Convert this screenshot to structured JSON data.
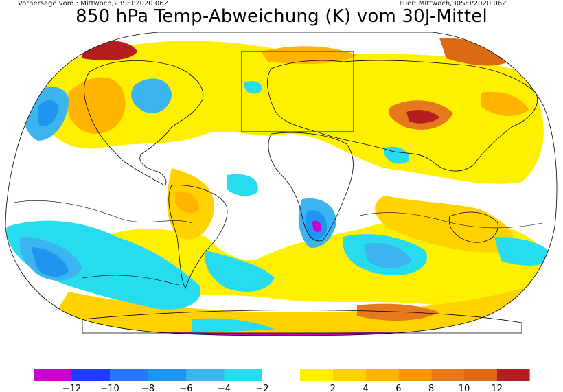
{
  "header": {
    "forecast_from": "Vorhersage vom : Mittwoch,23SEP2020 06Z",
    "valid_for": "Fuer: Mittwoch,30SEP2020 06Z",
    "title": "850 hPa Temp-Abweichung (K) vom 30J-Mittel"
  },
  "legend": {
    "negative_bins": [
      {
        "color": "#c800c8",
        "label": "−12"
      },
      {
        "color": "#1e3cff",
        "label": "−10"
      },
      {
        "color": "#2878ff",
        "label": "−8"
      },
      {
        "color": "#1e96f0",
        "label": "−6"
      },
      {
        "color": "#3cb4f0",
        "label": "−4"
      },
      {
        "color": "#28dcf0",
        "label": "−2"
      }
    ],
    "positive_bins": [
      {
        "color": "#fff000",
        "label": "2"
      },
      {
        "color": "#ffd200",
        "label": "4"
      },
      {
        "color": "#ffb400",
        "label": "6"
      },
      {
        "color": "#ff9600",
        "label": "8"
      },
      {
        "color": "#e6781e",
        "label": "10"
      },
      {
        "color": "#dc6a14",
        "label": "12"
      },
      {
        "color": "#b41e1e",
        "label": ""
      }
    ]
  }
}
